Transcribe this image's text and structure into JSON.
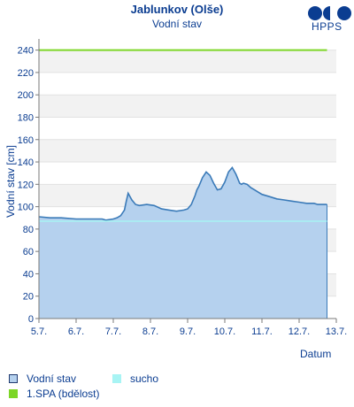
{
  "header": {
    "title": "Jablunkov (Olše)",
    "subtitle": "Vodní stav",
    "logo_text": "HPPS"
  },
  "legend": [
    {
      "label": "Vodní stav",
      "icon": "water-level-swatch",
      "color": "#b5d1ee"
    },
    {
      "label": "sucho",
      "icon": "drought-swatch",
      "color": "#a8f4f4"
    },
    {
      "label": "1.SPA (bdělost)",
      "icon": "spa1-swatch",
      "color": "#7cd626"
    }
  ],
  "chart_data": {
    "type": "area",
    "title": "Jablunkov (Olše)",
    "subtitle": "Vodní stav",
    "xlabel": "Datum",
    "ylabel": "Vodní stav [cm]",
    "ylim": [
      0,
      250
    ],
    "yticks": [
      0,
      20,
      40,
      60,
      80,
      100,
      120,
      140,
      160,
      180,
      200,
      220,
      240
    ],
    "xlim": [
      0,
      8
    ],
    "xticks": [
      0,
      1,
      2,
      3,
      4,
      5,
      6,
      7,
      8
    ],
    "xtick_labels": [
      "5.7.",
      "6.7.",
      "7.7.",
      "8.7.",
      "9.7.",
      "10.7.",
      "11.7.",
      "12.7.",
      "13.7."
    ],
    "grid": true,
    "series": [
      {
        "name": "Vodní stav",
        "color": "#3a7ab8",
        "fill": "#b5d1ee",
        "x": [
          0,
          0.3,
          0.6,
          1.0,
          1.4,
          1.7,
          1.8,
          2.0,
          2.1,
          2.2,
          2.3,
          2.35,
          2.4,
          2.5,
          2.6,
          2.7,
          2.9,
          3.1,
          3.3,
          3.5,
          3.7,
          3.9,
          4.0,
          4.1,
          4.2,
          4.25,
          4.3,
          4.4,
          4.5,
          4.6,
          4.7,
          4.8,
          4.9,
          5.0,
          5.1,
          5.2,
          5.3,
          5.4,
          5.45,
          5.5,
          5.6,
          5.7,
          5.8,
          5.9,
          6.0,
          6.2,
          6.4,
          6.6,
          6.8,
          7.0,
          7.2,
          7.4,
          7.5,
          7.7,
          7.75
        ],
        "y": [
          91,
          90,
          90,
          89,
          89,
          89,
          88,
          89,
          90,
          92,
          97,
          105,
          112,
          106,
          102,
          101,
          102,
          101,
          98,
          97,
          96,
          97,
          98,
          102,
          110,
          115,
          118,
          126,
          131,
          128,
          121,
          115,
          116,
          122,
          131,
          135,
          129,
          121,
          120,
          121,
          120,
          117,
          115,
          113,
          111,
          109,
          107,
          106,
          105,
          104,
          103,
          103,
          102,
          102,
          102
        ]
      },
      {
        "name": "sucho",
        "color": "#a8f4f4",
        "type": "threshold",
        "value": 87
      },
      {
        "name": "1.SPA (bdělost)",
        "color": "#7cd626",
        "type": "threshold",
        "value": 240
      }
    ]
  }
}
